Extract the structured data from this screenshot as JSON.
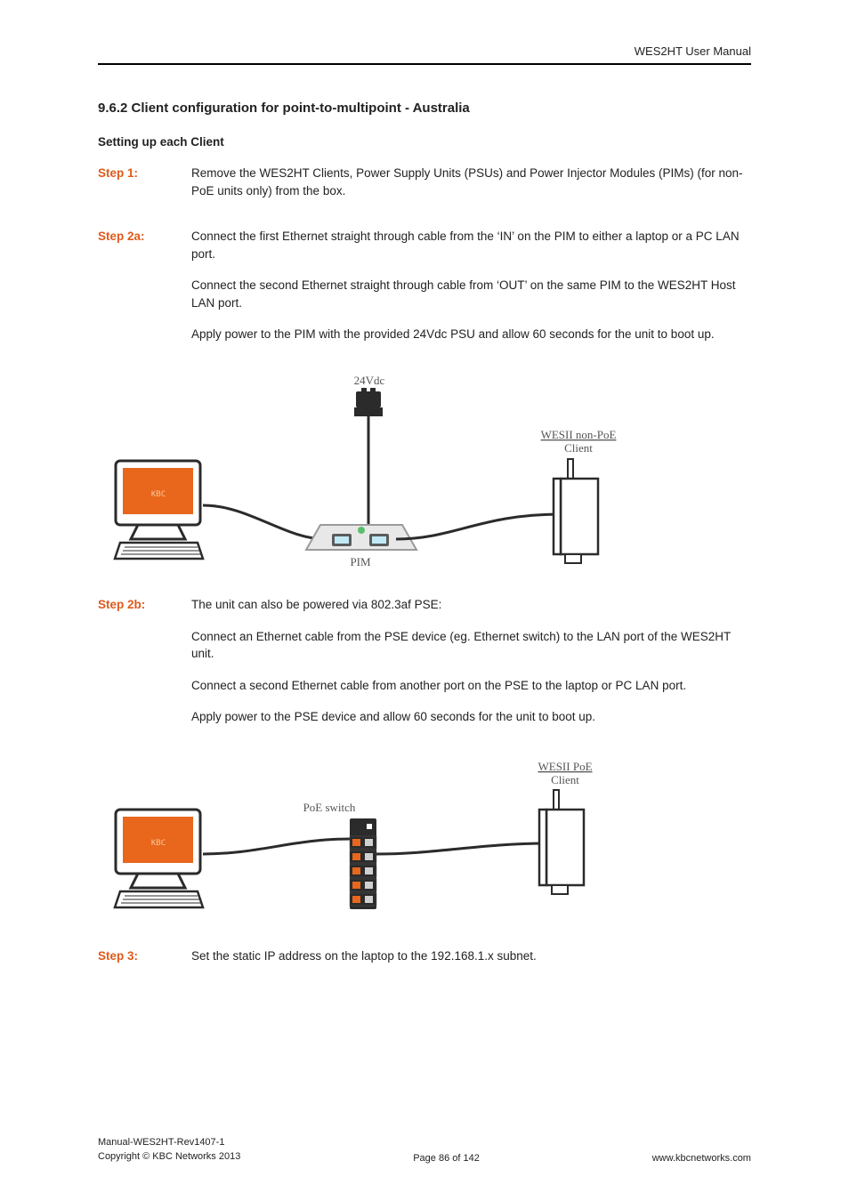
{
  "header": {
    "running": "WES2HT User Manual"
  },
  "section": {
    "number": "9.6.2",
    "title": "Client configuration for point-to-multipoint - Australia",
    "subhead": "Setting up each Client"
  },
  "steps": {
    "s1": {
      "label": "Step 1:",
      "p1": "Remove the WES2HT Clients, Power Supply Units (PSUs) and Power Injector Modules (PIMs) (for non-PoE units only) from the box."
    },
    "s2a": {
      "label": "Step 2a:",
      "p1": "Connect the first Ethernet straight through cable from the ‘IN’ on the PIM to either a laptop or a PC LAN port.",
      "p2": "Connect the second Ethernet straight through cable from ‘OUT’ on the same PIM to the WES2HT Host LAN port.",
      "p3": "Apply power to the PIM with the provided 24Vdc PSU and allow 60 seconds for the unit to boot up."
    },
    "s2b": {
      "label": "Step 2b:",
      "p1": "The unit can also be powered via 802.3af PSE:",
      "p2": "Connect an Ethernet cable from the PSE device (eg. Ethernet switch) to the LAN port of the WES2HT unit.",
      "p3": "Connect a second Ethernet cable from another port on the PSE to the laptop or PC LAN port.",
      "p4": "Apply power to the PSE device and allow 60 seconds for the unit to boot up."
    },
    "s3": {
      "label": "Step 3:",
      "p1": "Set the static IP address on the laptop to the 192.168.1.x subnet."
    }
  },
  "diagram1": {
    "psu_label": "24Vdc",
    "pim_label": "PIM",
    "client_label_l1": "WESII non-PoE",
    "client_label_l2": "Client",
    "colors": {
      "monitor_screen": "#e8671c",
      "monitor_text": "#f8c89c",
      "pim_body": "#e8e8e8",
      "pim_led": "#5bbf6e",
      "psu_body": "#2b2b2b",
      "wire": "#2b2b2b",
      "device_outline": "#2b2b2b",
      "label_text": "#555555"
    }
  },
  "diagram2": {
    "switch_label": "PoE switch",
    "client_label_l1": "WESII PoE",
    "client_label_l2": "Client",
    "colors": {
      "monitor_screen": "#e8671c",
      "monitor_text": "#f8c89c",
      "switch_body": "#2b2b2b",
      "switch_port": "#e8671c",
      "wire": "#2b2b2b",
      "device_outline": "#2b2b2b",
      "label_text": "#555555"
    }
  },
  "footer": {
    "doc_id": "Manual-WES2HT-Rev1407-1",
    "copyright": "Copyright © KBC Networks 2013",
    "page": "Page 86 of 142",
    "url": "www.kbcnetworks.com"
  }
}
